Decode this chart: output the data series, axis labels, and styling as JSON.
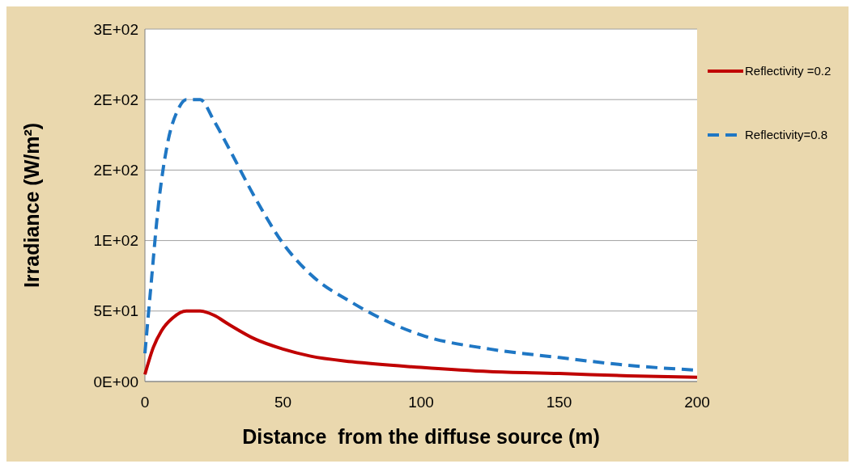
{
  "chart_data": {
    "type": "line",
    "xlabel": "Distance  from the diffuse source (m)",
    "ylabel": "Irradiance (W/m²)",
    "xlim": [
      0,
      200
    ],
    "xticks": [
      0,
      50,
      100,
      150,
      200
    ],
    "ylim": [
      0,
      250
    ],
    "yticks": [
      {
        "value": 0,
        "label": "0E+00"
      },
      {
        "value": 50,
        "label": "5E+01"
      },
      {
        "value": 100,
        "label": "1E+02"
      },
      {
        "value": 150,
        "label": "2E+02"
      },
      {
        "value": 200,
        "label": "2E+02"
      },
      {
        "value": 250,
        "label": "3E+02"
      }
    ],
    "grid": "y",
    "legend": "right",
    "series": [
      {
        "name": "Reflectivity =0.2",
        "color": "#c00000",
        "line_style": "solid",
        "x": [
          0,
          3,
          6,
          10,
          15,
          20,
          25,
          30,
          40,
          50,
          60,
          75,
          100,
          125,
          150,
          175,
          200
        ],
        "values": [
          5,
          24,
          36,
          45,
          50,
          50,
          47,
          41,
          30,
          23,
          18,
          14,
          10,
          7,
          5.7,
          4,
          3
        ]
      },
      {
        "name": "Reflectivity=0.8",
        "color": "#1f77c4",
        "line_style": "dashed",
        "x": [
          0,
          2,
          5,
          8,
          12,
          15,
          20,
          25,
          30,
          40,
          50,
          60,
          75,
          100,
          125,
          150,
          175,
          200
        ],
        "values": [
          20,
          64,
          127,
          167,
          193,
          200,
          200,
          185,
          167,
          130,
          98,
          76,
          56,
          33,
          23,
          17,
          11.5,
          8
        ]
      }
    ]
  }
}
